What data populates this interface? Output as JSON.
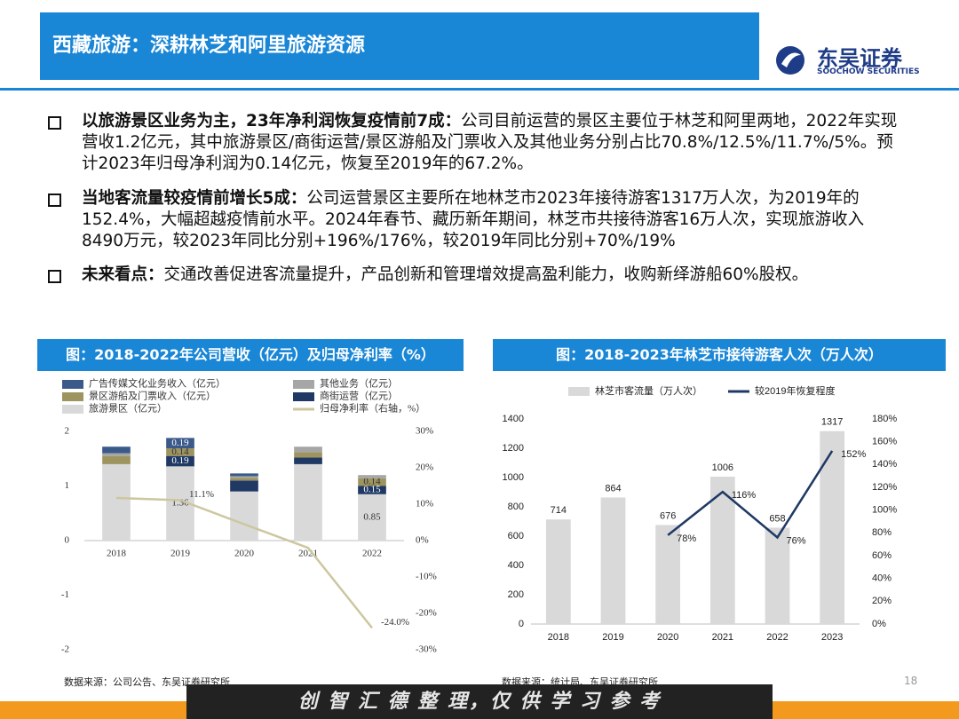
{
  "header": {
    "title": "西藏旅游：深耕林芝和阿里旅游资源",
    "logo_cn": "东吴证券",
    "logo_en": "SOOCHOW SECURITIES"
  },
  "bullets": [
    {
      "bold": "以旅游景区业务为主，23年净利润恢复疫情前7成：",
      "text": "公司目前运营的景区主要位于林芝和阿里两地，2022年实现营收1.2亿元，其中旅游景区/商街运营/景区游船及门票收入及其他业务分别占比70.8%/12.5%/11.7%/5%。预计2023年归母净利润为0.14亿元，恢复至2019年的67.2%。"
    },
    {
      "bold": "当地客流量较疫情前增长5成：",
      "text": "公司运营景区主要所在地林芝市2023年接待游客1317万人次，为2019年的152.4%，大幅超越疫情前水平。2024年春节、藏历新年期间，林芝市共接待游客16万人次，实现旅游收入8490万元，较2023年同比分别+196%/176%，较2019年同比分别+70%/19%"
    },
    {
      "bold": "未来看点：",
      "text": "交通改善促进客流量提升，产品创新和管理增效提高盈利能力，收购新绎游船60%股权。"
    }
  ],
  "chart_data": [
    {
      "type": "bar",
      "stacked": true,
      "title": "图：2018-2022年公司营收（亿元）及归母净利率（%）",
      "categories": [
        "2018",
        "2019",
        "2020",
        "2021",
        "2022"
      ],
      "series": [
        {
          "name": "旅游景区（亿元）",
          "color": "#d9d9d9",
          "values": [
            1.4,
            1.36,
            0.9,
            1.4,
            0.85
          ],
          "value_labels": [
            null,
            "1.36",
            null,
            null,
            "0.85"
          ]
        },
        {
          "name": "商街运营（亿元）",
          "color": "#1f3864",
          "values": [
            0,
            0.19,
            0.2,
            0.12,
            0.15
          ],
          "value_labels": [
            null,
            "0.19",
            null,
            null,
            "0.15"
          ]
        },
        {
          "name": "景区游船及门票收入（亿元）",
          "color": "#9e9460",
          "values": [
            0.15,
            0.14,
            0.05,
            0.1,
            0.14
          ],
          "value_labels": [
            null,
            "0.14",
            null,
            null,
            "0.14"
          ]
        },
        {
          "name": "其他业务（亿元）",
          "color": "#a6a6a6",
          "values": [
            0.05,
            0,
            0.03,
            0.1,
            0.06
          ]
        },
        {
          "name": "广告传媒文化业务收入（亿元）",
          "color": "#3b5a8a",
          "values": [
            0.12,
            0.19,
            0.05,
            0,
            0
          ],
          "value_labels": [
            null,
            "0.19",
            null,
            null,
            null
          ]
        },
        {
          "name": "归母净利率（右轴，%）",
          "type": "line",
          "axis": "y2",
          "color": "#cdc79f",
          "values": [
            11.7,
            11.1,
            4.5,
            -2,
            -24
          ],
          "value_labels": [
            null,
            "11.1%",
            null,
            null,
            "-24.0%"
          ]
        }
      ],
      "ylim": [
        -2,
        2
      ],
      "yticks": [
        -2,
        -1,
        0,
        1,
        2
      ],
      "y2lim": [
        -30,
        30
      ],
      "y2ticks": [
        {
          "value": -30,
          "label": "-30%"
        },
        {
          "value": -20,
          "label": "-20%"
        },
        {
          "value": -10,
          "label": "-10%"
        },
        {
          "value": 0,
          "label": "0%"
        },
        {
          "value": 10,
          "label": "10%"
        },
        {
          "value": 20,
          "label": "20%"
        },
        {
          "value": 30,
          "label": "30%"
        }
      ],
      "source": "数据来源：公司公告、东吴证券研究所"
    },
    {
      "type": "bar",
      "stacked": false,
      "title": "图：2018-2023年林芝市接待游客人次（万人次）",
      "categories": [
        "2018",
        "2019",
        "2020",
        "2021",
        "2022",
        "2023"
      ],
      "series": [
        {
          "name": "林芝市客流量（万人次）",
          "color": "#d9d9d9",
          "values": [
            714,
            864,
            676,
            1006,
            658,
            1317
          ]
        },
        {
          "name": "较2019年恢复程度",
          "type": "line",
          "axis": "y2",
          "color": "#1f3864",
          "values": [
            null,
            null,
            78,
            116,
            76,
            152
          ],
          "value_labels": [
            null,
            null,
            "78%",
            "116%",
            "76%",
            "152%"
          ]
        }
      ],
      "ylim": [
        0,
        1400
      ],
      "yticks": [
        0,
        200,
        400,
        600,
        800,
        1000,
        1200,
        1400
      ],
      "y2lim": [
        0,
        180
      ],
      "y2ticks": [
        {
          "value": 0,
          "label": "0%"
        },
        {
          "value": 20,
          "label": "20%"
        },
        {
          "value": 40,
          "label": "40%"
        },
        {
          "value": 60,
          "label": "60%"
        },
        {
          "value": 80,
          "label": "80%"
        },
        {
          "value": 100,
          "label": "100%"
        },
        {
          "value": 120,
          "label": "120%"
        },
        {
          "value": 140,
          "label": "140%"
        },
        {
          "value": 160,
          "label": "160%"
        },
        {
          "value": 180,
          "label": "180%"
        }
      ],
      "source": "数据来源：统计局、东吴证券研究所"
    }
  ],
  "page_number": "18",
  "watermark": "创 智 汇 德 整 理，仅 供 学 习 参 考"
}
